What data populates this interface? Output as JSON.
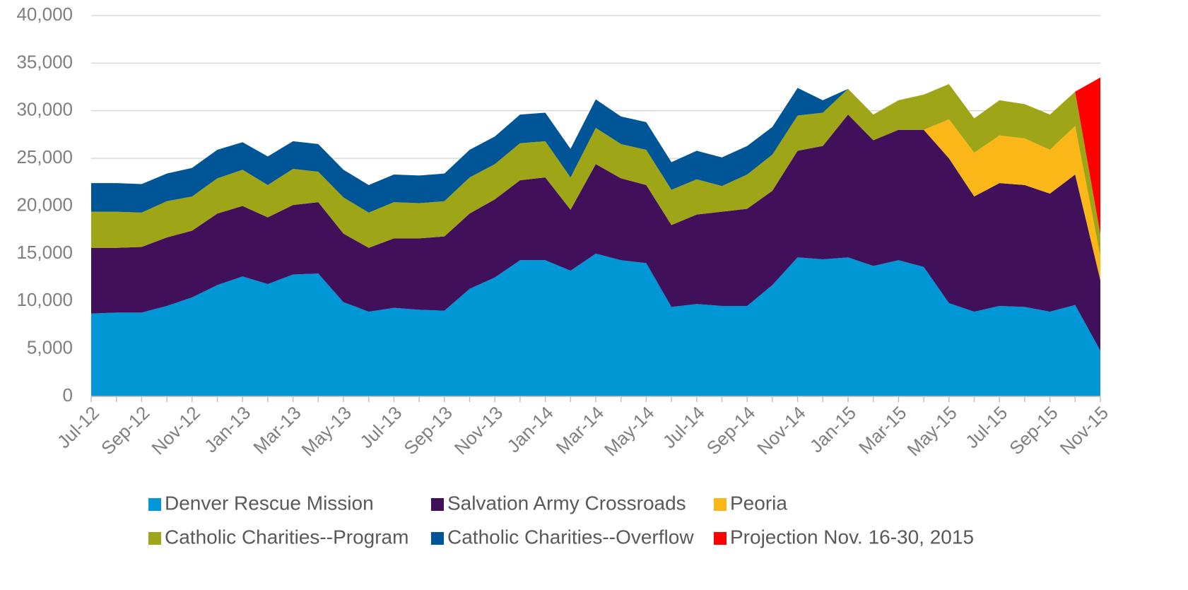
{
  "chart_data": {
    "type": "area",
    "stacked": true,
    "grid": true,
    "legend": "bottom",
    "categories": [
      "Jul-12",
      null,
      "Sep-12",
      null,
      "Nov-12",
      null,
      "Jan-13",
      null,
      "Mar-13",
      null,
      "May-13",
      null,
      "Jul-13",
      null,
      "Sep-13",
      null,
      "Nov-13",
      null,
      "Jan-14",
      null,
      "Mar-14",
      null,
      "May-14",
      null,
      "Jul-14",
      null,
      "Sep-14",
      null,
      "Nov-14",
      null,
      "Jan-15",
      null,
      "Mar-15",
      null,
      "May-15",
      null,
      "Jul-15",
      null,
      "Sep-15",
      null,
      "Nov-15"
    ],
    "series": [
      {
        "name": "Denver Rescue Mission",
        "color": "#0097d6",
        "values": [
          8700,
          8800,
          8800,
          9500,
          10400,
          11700,
          12600,
          11800,
          12800,
          12900,
          9900,
          8900,
          9300,
          9100,
          9000,
          11300,
          12500,
          14300,
          14300,
          13200,
          15000,
          14300,
          14000,
          9400,
          9700,
          9500,
          9500,
          11700,
          14600,
          14400,
          14600,
          13700,
          14300,
          13600,
          9800,
          8900,
          9500,
          9400,
          8900,
          9600,
          4800
        ]
      },
      {
        "name": "Salvation Army Crossroads",
        "color": "#40105a",
        "values": [
          6900,
          6800,
          6900,
          7200,
          7000,
          7500,
          7400,
          7000,
          7300,
          7500,
          7200,
          6700,
          7300,
          7500,
          7800,
          7900,
          8200,
          8400,
          8700,
          6400,
          9400,
          8600,
          8200,
          8600,
          9400,
          9900,
          10200,
          9900,
          11200,
          11900,
          15000,
          13200,
          13700,
          14400,
          15200,
          12100,
          12900,
          12800,
          12400,
          13700,
          7400
        ]
      },
      {
        "name": "Peoria",
        "color": "#fbb718",
        "values": [
          0,
          0,
          0,
          0,
          0,
          0,
          0,
          0,
          0,
          0,
          0,
          0,
          0,
          0,
          0,
          0,
          0,
          0,
          0,
          0,
          0,
          0,
          0,
          0,
          0,
          0,
          0,
          0,
          0,
          0,
          0,
          0,
          0,
          0,
          4100,
          4600,
          5000,
          4900,
          4600,
          5100,
          2500
        ]
      },
      {
        "name": "Catholic Charities--Program",
        "color": "#9ea617",
        "values": [
          3800,
          3800,
          3600,
          3800,
          3600,
          3700,
          3800,
          3400,
          3800,
          3200,
          3800,
          3700,
          3800,
          3700,
          3700,
          3800,
          3700,
          3900,
          3800,
          3400,
          3800,
          3600,
          3700,
          3700,
          3700,
          2700,
          3600,
          3800,
          3700,
          3500,
          2700,
          2700,
          3100,
          3700,
          3700,
          3600,
          3700,
          3600,
          3700,
          3600,
          2300
        ]
      },
      {
        "name": "Catholic Charities--Overflow",
        "color": "#005596",
        "values": [
          3000,
          3000,
          3000,
          2900,
          3000,
          3000,
          2900,
          3000,
          2900,
          2900,
          2900,
          2900,
          2900,
          2900,
          2900,
          2900,
          2900,
          3000,
          3000,
          3000,
          3000,
          2900,
          2900,
          2900,
          3000,
          3000,
          3000,
          2900,
          2900,
          1300,
          0,
          0,
          0,
          0,
          0,
          0,
          0,
          0,
          0,
          0,
          0
        ]
      },
      {
        "name": "Projection Nov. 16-30, 2015",
        "color": "#ff0000",
        "values": [
          0,
          0,
          0,
          0,
          0,
          0,
          0,
          0,
          0,
          0,
          0,
          0,
          0,
          0,
          0,
          0,
          0,
          0,
          0,
          0,
          0,
          0,
          0,
          0,
          0,
          0,
          0,
          0,
          0,
          0,
          0,
          0,
          0,
          0,
          0,
          0,
          0,
          0,
          0,
          0,
          16500
        ]
      }
    ],
    "ylim": [
      0,
      40000
    ],
    "yticks": [
      {
        "value": 0,
        "label": "0"
      },
      {
        "value": 5000,
        "label": "5,000"
      },
      {
        "value": 10000,
        "label": "10,000"
      },
      {
        "value": 15000,
        "label": "15,000"
      },
      {
        "value": 20000,
        "label": "20,000"
      },
      {
        "value": 25000,
        "label": "25,000"
      },
      {
        "value": 30000,
        "label": "30,000"
      },
      {
        "value": 35000,
        "label": "35,000"
      },
      {
        "value": 40000,
        "label": "40,000"
      }
    ]
  }
}
